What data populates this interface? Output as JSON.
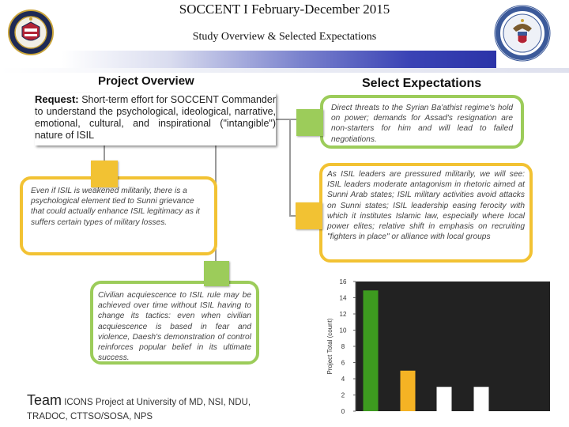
{
  "header": {
    "title": "SOCCENT I February-December 2015",
    "subtitle": "Study Overview & Selected Expectations"
  },
  "project_overview": {
    "heading": "Project Overview",
    "request_label": "Request:",
    "request_text": "Short-term effort for SOCCENT Commander to understand the psychological, ideological, narrative, emotional, cultural, and inspirational (\"intangible\") nature of ISIL",
    "box_weakened": "Even if ISIL is weakened militarily, there is a psychological element tied to Sunni grievance that could actually enhance ISIL legitimacy as it suffers certain types of military losses.",
    "box_civilian": "Civilian acquiescence to ISIL rule may be achieved over time without ISIL having to change its tactics: even when civilian acquiescence is based in fear and violence, Daesh's demonstration of control reinforces popular belief in its ultimate success."
  },
  "select_expectations": {
    "heading": "Select Expectations",
    "box_direct_threats": "Direct threats to the Syrian Ba'athist regime's hold on power; demands for Assad's resignation are non-starters for him and will lead to failed negotiations.",
    "box_pressured": "As ISIL leaders are pressured militarily, we will see: ISIL leaders moderate antagonism in rhetoric aimed at Sunni Arab states; ISIL military activities avoid attacks on Sunni states; ISIL leadership easing ferocity with which it institutes Islamic law, especially where local power elites; relative shift in emphasis on recruiting \"fighters in place\" or alliance with local groups"
  },
  "team": {
    "label": "Team",
    "text_line1": "ICONS Project at University of MD, NSI, NDU,",
    "text_line2": "TRADOC, CTTSO/SOSA, NPS"
  },
  "colors": {
    "accent_yellow": "#f2c233",
    "accent_green": "#9ccc5a",
    "bar_green": "#3d9a1f",
    "bar_orange": "#f5b324",
    "bar_white": "#ffffff",
    "chart_bg": "#222222"
  },
  "chart_data": {
    "type": "bar",
    "title": "",
    "xlabel": "",
    "ylabel": "Project Total (count)",
    "ylim": [
      0,
      16
    ],
    "yticks": [
      0,
      2,
      4,
      6,
      8,
      10,
      12,
      14,
      16
    ],
    "categories": [
      "",
      "",
      "",
      ""
    ],
    "values": [
      14.9,
      5,
      3,
      3
    ],
    "bar_colors": [
      "#3d9a1f",
      "#f5b324",
      "#ffffff",
      "#ffffff"
    ]
  },
  "icons": {
    "left_seal": "socom-seal-icon",
    "right_seal": "department-of-defense-seal-icon"
  }
}
